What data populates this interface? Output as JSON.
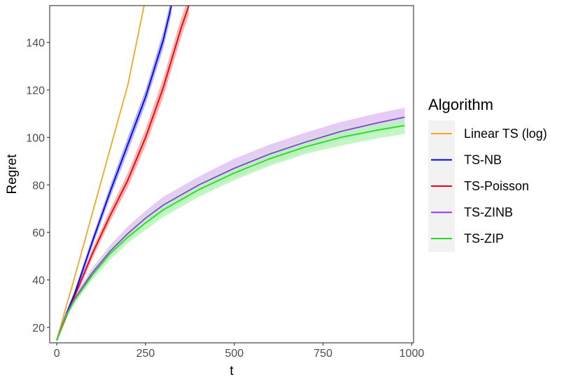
{
  "chart_data": {
    "type": "line",
    "xlabel": "t",
    "ylabel": "Regret",
    "xlim": [
      -20,
      1005
    ],
    "ylim": [
      13.5,
      155.5
    ],
    "xticks": [
      0,
      250,
      500,
      750,
      1000
    ],
    "yticks": [
      20,
      40,
      60,
      80,
      100,
      120,
      140
    ],
    "grid": false,
    "legend": {
      "title": "Algorithm",
      "position": "right",
      "entries": [
        "Linear TS (log)",
        "TS-NB",
        "TS-Poisson",
        "TS-ZINB",
        "TS-ZIP"
      ]
    },
    "series": [
      {
        "name": "Linear TS (log)",
        "color": "#f5a623",
        "x": [
          0,
          25,
          50,
          100,
          150,
          200,
          246
        ],
        "y": [
          14.5,
          28,
          41,
          68,
          95,
          122,
          155.5
        ],
        "band": [
          0.6,
          0.6,
          0.6,
          0.6,
          0.6,
          0.6,
          0.6
        ]
      },
      {
        "name": "TS-NB",
        "color": "#0000ee",
        "x": [
          0,
          25,
          50,
          100,
          150,
          200,
          250,
          300,
          323
        ],
        "y": [
          14.5,
          25,
          34,
          56,
          77,
          97,
          117,
          141,
          155.5
        ],
        "band": [
          0.5,
          1,
          1.5,
          2,
          2.5,
          3,
          3,
          3.5,
          3.5
        ]
      },
      {
        "name": "TS-Poisson",
        "color": "#ee0000",
        "x": [
          0,
          25,
          50,
          100,
          150,
          200,
          250,
          300,
          350,
          372
        ],
        "y": [
          14.5,
          24,
          33,
          51,
          67,
          82,
          100,
          121,
          146,
          155.5
        ],
        "band": [
          0.5,
          1,
          1.5,
          2,
          2.5,
          3,
          3.5,
          4,
          4,
          4
        ]
      },
      {
        "name": "TS-ZINB",
        "color": "#9933ee",
        "bandColor": "#e0c2f5",
        "x": [
          0,
          25,
          50,
          100,
          150,
          200,
          250,
          300,
          400,
          500,
          600,
          700,
          800,
          900,
          980
        ],
        "y": [
          14.5,
          25,
          32,
          43,
          52,
          59.5,
          66,
          71.5,
          80,
          87,
          93,
          98,
          102.5,
          106,
          108.5
        ],
        "band": [
          0.5,
          1,
          1.5,
          2,
          2.5,
          3,
          3,
          3.5,
          3.5,
          4,
          4,
          4,
          4,
          4,
          4
        ]
      },
      {
        "name": "TS-ZIP",
        "color": "#22dd22",
        "bandColor": "#b8f5b8",
        "x": [
          0,
          25,
          50,
          100,
          150,
          200,
          250,
          300,
          400,
          500,
          600,
          700,
          800,
          900,
          980
        ],
        "y": [
          14.5,
          24.5,
          31.5,
          42,
          51,
          58,
          64,
          69.5,
          78,
          85,
          91,
          96,
          100,
          103,
          105
        ],
        "band": [
          0.5,
          1,
          1.5,
          2,
          2.5,
          2.5,
          3,
          3,
          3,
          3,
          3,
          3,
          3.5,
          3.5,
          3.5
        ]
      }
    ]
  }
}
